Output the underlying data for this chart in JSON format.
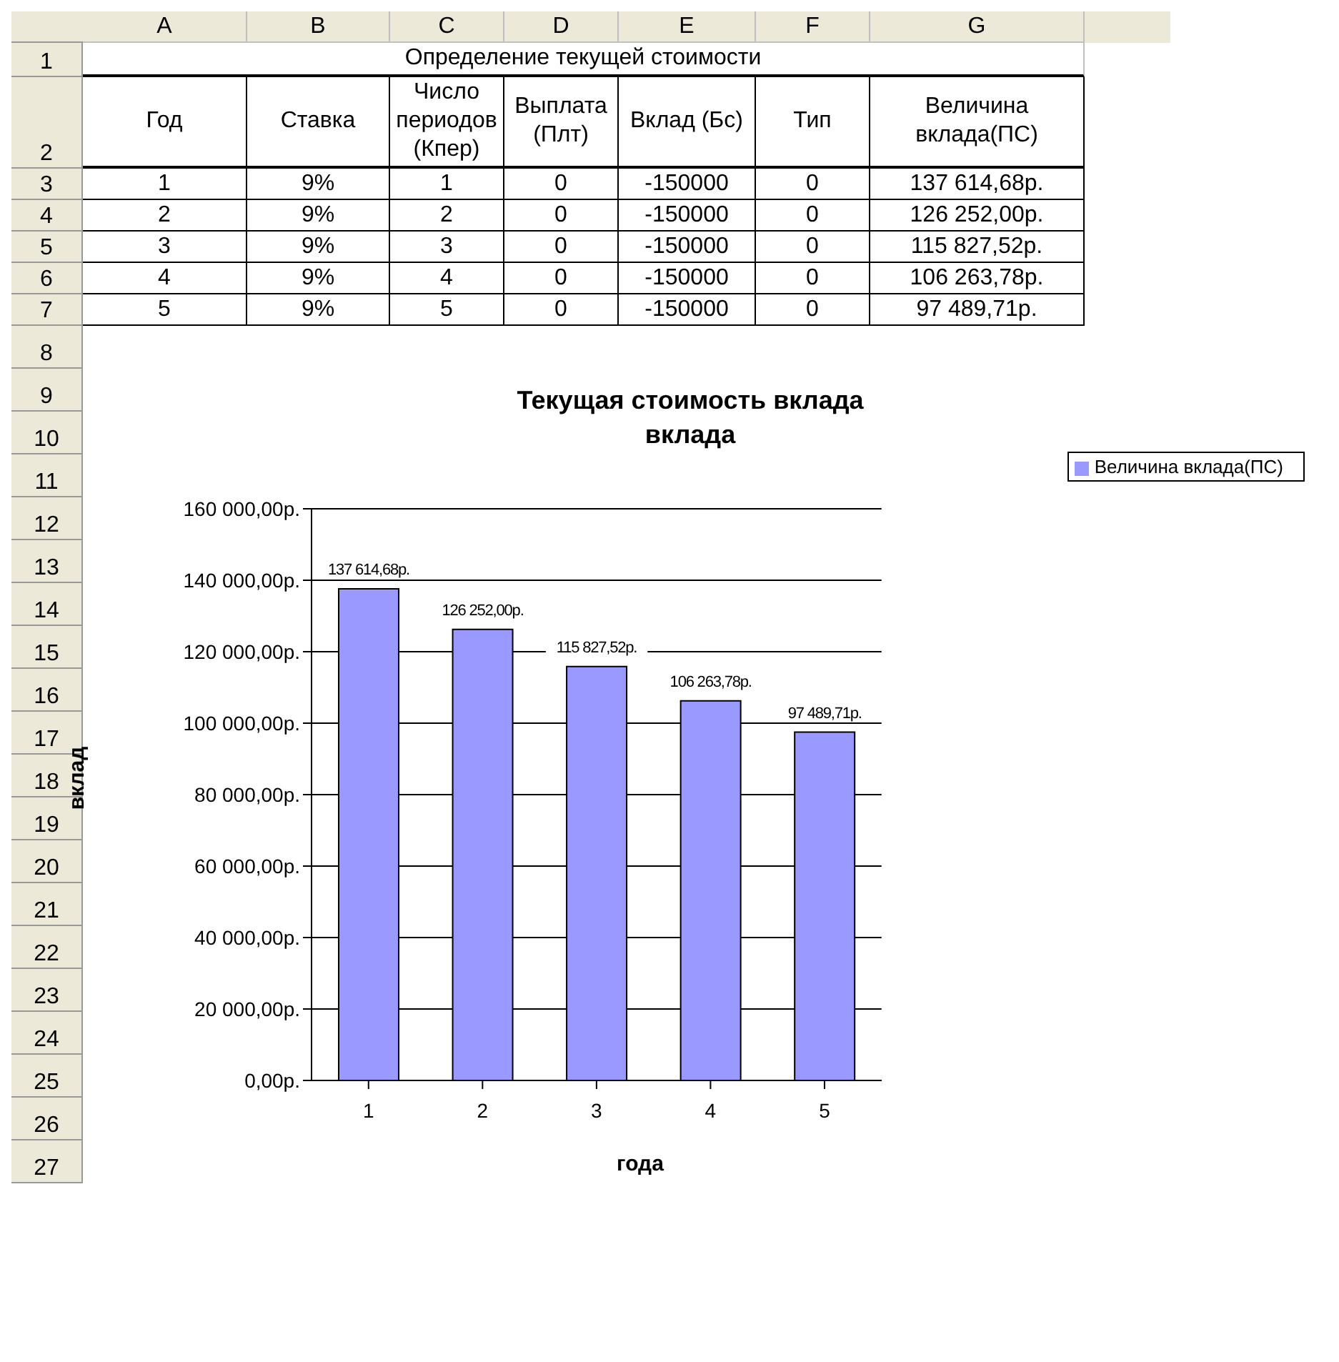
{
  "chart_data": [
    {
      "type": "other",
      "title": "Определение текущей стоимости",
      "categories": [
        "A",
        "B",
        "C",
        "D",
        "E",
        "F",
        "G"
      ],
      "y_categories": [
        "1",
        "2",
        "3",
        "4",
        "5",
        "6",
        "7",
        "8",
        "9",
        "10",
        "11",
        "12",
        "13",
        "14",
        "15",
        "16",
        "17",
        "18",
        "19",
        "20",
        "21",
        "22",
        "23",
        "24",
        "25",
        "26",
        "27"
      ],
      "annotations": [
        "Год",
        "Ставка",
        "Число периодов (Кпер)",
        "Выплата (Плт)",
        "Вклад (Бс)",
        "Тип",
        "Величина вклада(ПС)",
        "1",
        "9%",
        "1",
        "0",
        "-150000",
        "0",
        "137 614,68р.",
        "2",
        "9%",
        "2",
        "0",
        "-150000",
        "0",
        "126 252,00р.",
        "3",
        "9%",
        "3",
        "0",
        "-150000",
        "0",
        "115 827,52р.",
        "4",
        "9%",
        "4",
        "0",
        "-150000",
        "0",
        "106 263,78р.",
        "5",
        "9%",
        "5",
        "0",
        "-150000",
        "0",
        "97 489,71р."
      ]
    },
    {
      "type": "bar",
      "title": "Текущая стоимость вклада\nвклада",
      "xlabel": "года",
      "ylabel": "вклад",
      "categories": [
        "1",
        "2",
        "3",
        "4",
        "5"
      ],
      "series": [
        {
          "name": "Величина вклада(ПС)",
          "color": "#9999ff",
          "values": [
            137614.68,
            126252.0,
            115827.52,
            106263.78,
            97489.71
          ],
          "value_labels": [
            "137 614,68р.",
            "126 252,00р.",
            "115 827,52р.",
            "106 263,78р.",
            "97 489,71р."
          ]
        }
      ],
      "ylim": [
        0,
        160000
      ],
      "yticks": [
        {
          "value": 0,
          "label": "0,00р."
        },
        {
          "value": 20000,
          "label": "20 000,00р."
        },
        {
          "value": 40000,
          "label": "40 000,00р."
        },
        {
          "value": 60000,
          "label": "60 000,00р."
        },
        {
          "value": 80000,
          "label": "80 000,00р."
        },
        {
          "value": 100000,
          "label": "100 000,00р."
        },
        {
          "value": 120000,
          "label": "120 000,00р."
        },
        {
          "value": 140000,
          "label": "140 000,00р."
        },
        {
          "value": 160000,
          "label": "160 000,00р."
        }
      ],
      "grid": "y",
      "legend": "top right"
    }
  ]
}
